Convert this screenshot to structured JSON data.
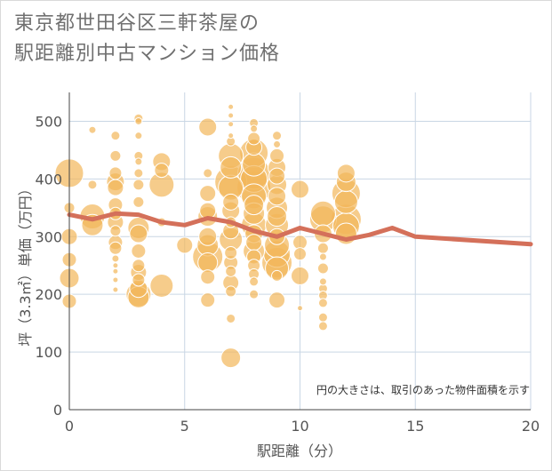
{
  "title_line1": "東京都世田谷区三軒茶屋の",
  "title_line2": "駅距離別中古マンション価格",
  "colors": {
    "bubble": "#f2b65a",
    "bubble_edge": "#ffffff",
    "line": "#d4705a",
    "grid": "#c9d6e4"
  },
  "chart_data": {
    "type": "scatter",
    "title": "東京都世田谷区三軒茶屋の駅距離別中古マンション価格",
    "xlabel": "駅距離（分）",
    "ylabel": "坪（3.3㎡）単価（万円）",
    "xlim": [
      0,
      20
    ],
    "ylim": [
      0,
      550
    ],
    "x_ticks": [
      0,
      5,
      10,
      15,
      20
    ],
    "y_ticks": [
      0,
      100,
      200,
      300,
      400,
      500
    ],
    "grid": true,
    "note": "円の大きさは、取引のあった物件面積を示す",
    "trend": {
      "x": [
        0,
        1,
        2,
        3,
        4,
        5,
        6,
        7,
        8,
        9,
        10,
        11,
        12,
        13,
        14,
        15,
        20
      ],
      "y": [
        338,
        330,
        340,
        338,
        325,
        320,
        332,
        325,
        310,
        300,
        315,
        305,
        295,
        303,
        315,
        300,
        287
      ]
    },
    "points": [
      {
        "x": 0,
        "y": 410,
        "s": 16
      },
      {
        "x": 0,
        "y": 350,
        "s": 6
      },
      {
        "x": 0,
        "y": 300,
        "s": 9
      },
      {
        "x": 0,
        "y": 260,
        "s": 8
      },
      {
        "x": 0,
        "y": 228,
        "s": 11
      },
      {
        "x": 0,
        "y": 188,
        "s": 8
      },
      {
        "x": 1,
        "y": 485,
        "s": 4
      },
      {
        "x": 1,
        "y": 390,
        "s": 5
      },
      {
        "x": 1,
        "y": 335,
        "s": 14
      },
      {
        "x": 1,
        "y": 320,
        "s": 12
      },
      {
        "x": 2,
        "y": 475,
        "s": 5
      },
      {
        "x": 2,
        "y": 440,
        "s": 6
      },
      {
        "x": 2,
        "y": 410,
        "s": 7
      },
      {
        "x": 2,
        "y": 395,
        "s": 10
      },
      {
        "x": 2,
        "y": 385,
        "s": 9
      },
      {
        "x": 2,
        "y": 355,
        "s": 8
      },
      {
        "x": 2,
        "y": 340,
        "s": 7
      },
      {
        "x": 2,
        "y": 325,
        "s": 9
      },
      {
        "x": 2,
        "y": 310,
        "s": 6
      },
      {
        "x": 2,
        "y": 290,
        "s": 8
      },
      {
        "x": 2,
        "y": 280,
        "s": 7
      },
      {
        "x": 2,
        "y": 262,
        "s": 4
      },
      {
        "x": 2,
        "y": 250,
        "s": 3
      },
      {
        "x": 2,
        "y": 240,
        "s": 3
      },
      {
        "x": 2,
        "y": 225,
        "s": 3
      },
      {
        "x": 2,
        "y": 208,
        "s": 3
      },
      {
        "x": 3,
        "y": 505,
        "s": 5
      },
      {
        "x": 3,
        "y": 500,
        "s": 4
      },
      {
        "x": 3,
        "y": 475,
        "s": 4
      },
      {
        "x": 3,
        "y": 440,
        "s": 5
      },
      {
        "x": 3,
        "y": 430,
        "s": 4
      },
      {
        "x": 3,
        "y": 410,
        "s": 5
      },
      {
        "x": 3,
        "y": 390,
        "s": 6
      },
      {
        "x": 3,
        "y": 360,
        "s": 6
      },
      {
        "x": 3,
        "y": 315,
        "s": 12
      },
      {
        "x": 3,
        "y": 305,
        "s": 10
      },
      {
        "x": 3,
        "y": 275,
        "s": 8
      },
      {
        "x": 3,
        "y": 250,
        "s": 7
      },
      {
        "x": 3,
        "y": 238,
        "s": 9
      },
      {
        "x": 3,
        "y": 225,
        "s": 7
      },
      {
        "x": 3,
        "y": 210,
        "s": 10
      },
      {
        "x": 3,
        "y": 200,
        "s": 14
      },
      {
        "x": 3,
        "y": 195,
        "s": 12
      },
      {
        "x": 4,
        "y": 430,
        "s": 10
      },
      {
        "x": 4,
        "y": 415,
        "s": 8
      },
      {
        "x": 4,
        "y": 390,
        "s": 14
      },
      {
        "x": 4,
        "y": 325,
        "s": 5
      },
      {
        "x": 4,
        "y": 215,
        "s": 13
      },
      {
        "x": 5,
        "y": 285,
        "s": 9
      },
      {
        "x": 6,
        "y": 490,
        "s": 10
      },
      {
        "x": 6,
        "y": 410,
        "s": 5
      },
      {
        "x": 6,
        "y": 375,
        "s": 9
      },
      {
        "x": 6,
        "y": 345,
        "s": 9
      },
      {
        "x": 6,
        "y": 335,
        "s": 11
      },
      {
        "x": 6,
        "y": 300,
        "s": 10
      },
      {
        "x": 6,
        "y": 285,
        "s": 12
      },
      {
        "x": 6,
        "y": 265,
        "s": 17
      },
      {
        "x": 6,
        "y": 255,
        "s": 11
      },
      {
        "x": 6,
        "y": 230,
        "s": 8
      },
      {
        "x": 6,
        "y": 190,
        "s": 8
      },
      {
        "x": 7,
        "y": 525,
        "s": 3
      },
      {
        "x": 7,
        "y": 510,
        "s": 3
      },
      {
        "x": 7,
        "y": 495,
        "s": 3
      },
      {
        "x": 7,
        "y": 475,
        "s": 3
      },
      {
        "x": 7,
        "y": 465,
        "s": 5
      },
      {
        "x": 7,
        "y": 440,
        "s": 14
      },
      {
        "x": 7,
        "y": 420,
        "s": 12
      },
      {
        "x": 7,
        "y": 395,
        "s": 18
      },
      {
        "x": 7,
        "y": 385,
        "s": 14
      },
      {
        "x": 7,
        "y": 360,
        "s": 9
      },
      {
        "x": 7,
        "y": 345,
        "s": 10
      },
      {
        "x": 7,
        "y": 325,
        "s": 6
      },
      {
        "x": 7,
        "y": 310,
        "s": 9
      },
      {
        "x": 7,
        "y": 295,
        "s": 13
      },
      {
        "x": 7,
        "y": 272,
        "s": 7
      },
      {
        "x": 7,
        "y": 255,
        "s": 8
      },
      {
        "x": 7,
        "y": 240,
        "s": 6
      },
      {
        "x": 7,
        "y": 220,
        "s": 9
      },
      {
        "x": 7,
        "y": 205,
        "s": 6
      },
      {
        "x": 7,
        "y": 158,
        "s": 5
      },
      {
        "x": 7,
        "y": 90,
        "s": 11
      },
      {
        "x": 8,
        "y": 497,
        "s": 5
      },
      {
        "x": 8,
        "y": 487,
        "s": 4
      },
      {
        "x": 8,
        "y": 470,
        "s": 7
      },
      {
        "x": 8,
        "y": 455,
        "s": 9
      },
      {
        "x": 8,
        "y": 445,
        "s": 16
      },
      {
        "x": 8,
        "y": 425,
        "s": 13
      },
      {
        "x": 8,
        "y": 410,
        "s": 18
      },
      {
        "x": 8,
        "y": 400,
        "s": 15
      },
      {
        "x": 8,
        "y": 385,
        "s": 19
      },
      {
        "x": 8,
        "y": 370,
        "s": 14
      },
      {
        "x": 8,
        "y": 355,
        "s": 11
      },
      {
        "x": 8,
        "y": 340,
        "s": 12
      },
      {
        "x": 8,
        "y": 320,
        "s": 14
      },
      {
        "x": 8,
        "y": 305,
        "s": 10
      },
      {
        "x": 8,
        "y": 290,
        "s": 9
      },
      {
        "x": 8,
        "y": 275,
        "s": 12
      },
      {
        "x": 8,
        "y": 265,
        "s": 8
      },
      {
        "x": 8,
        "y": 250,
        "s": 7
      },
      {
        "x": 8,
        "y": 235,
        "s": 6
      },
      {
        "x": 8,
        "y": 222,
        "s": 5
      },
      {
        "x": 8,
        "y": 200,
        "s": 5
      },
      {
        "x": 9,
        "y": 475,
        "s": 5
      },
      {
        "x": 9,
        "y": 460,
        "s": 4
      },
      {
        "x": 9,
        "y": 440,
        "s": 8
      },
      {
        "x": 9,
        "y": 420,
        "s": 10
      },
      {
        "x": 9,
        "y": 405,
        "s": 9
      },
      {
        "x": 9,
        "y": 390,
        "s": 11
      },
      {
        "x": 9,
        "y": 370,
        "s": 10
      },
      {
        "x": 9,
        "y": 350,
        "s": 12
      },
      {
        "x": 9,
        "y": 335,
        "s": 11
      },
      {
        "x": 9,
        "y": 320,
        "s": 13
      },
      {
        "x": 9,
        "y": 300,
        "s": 9
      },
      {
        "x": 9,
        "y": 285,
        "s": 14
      },
      {
        "x": 9,
        "y": 270,
        "s": 15
      },
      {
        "x": 9,
        "y": 255,
        "s": 17
      },
      {
        "x": 9,
        "y": 245,
        "s": 13
      },
      {
        "x": 9,
        "y": 232,
        "s": 6
      },
      {
        "x": 9,
        "y": 190,
        "s": 9
      },
      {
        "x": 10,
        "y": 382,
        "s": 10
      },
      {
        "x": 10,
        "y": 290,
        "s": 8
      },
      {
        "x": 10,
        "y": 270,
        "s": 7
      },
      {
        "x": 10,
        "y": 232,
        "s": 10
      },
      {
        "x": 10,
        "y": 176,
        "s": 3
      },
      {
        "x": 11,
        "y": 340,
        "s": 14
      },
      {
        "x": 11,
        "y": 330,
        "s": 15
      },
      {
        "x": 11,
        "y": 305,
        "s": 10
      },
      {
        "x": 11,
        "y": 280,
        "s": 6
      },
      {
        "x": 11,
        "y": 265,
        "s": 4
      },
      {
        "x": 11,
        "y": 245,
        "s": 6
      },
      {
        "x": 11,
        "y": 222,
        "s": 4
      },
      {
        "x": 11,
        "y": 210,
        "s": 5
      },
      {
        "x": 11,
        "y": 198,
        "s": 5
      },
      {
        "x": 11,
        "y": 185,
        "s": 5
      },
      {
        "x": 11,
        "y": 160,
        "s": 5
      },
      {
        "x": 11,
        "y": 145,
        "s": 5
      },
      {
        "x": 12,
        "y": 410,
        "s": 10
      },
      {
        "x": 12,
        "y": 395,
        "s": 11
      },
      {
        "x": 12,
        "y": 375,
        "s": 16
      },
      {
        "x": 12,
        "y": 360,
        "s": 13
      },
      {
        "x": 12,
        "y": 330,
        "s": 17
      },
      {
        "x": 12,
        "y": 318,
        "s": 15
      },
      {
        "x": 12,
        "y": 305,
        "s": 12
      }
    ]
  }
}
